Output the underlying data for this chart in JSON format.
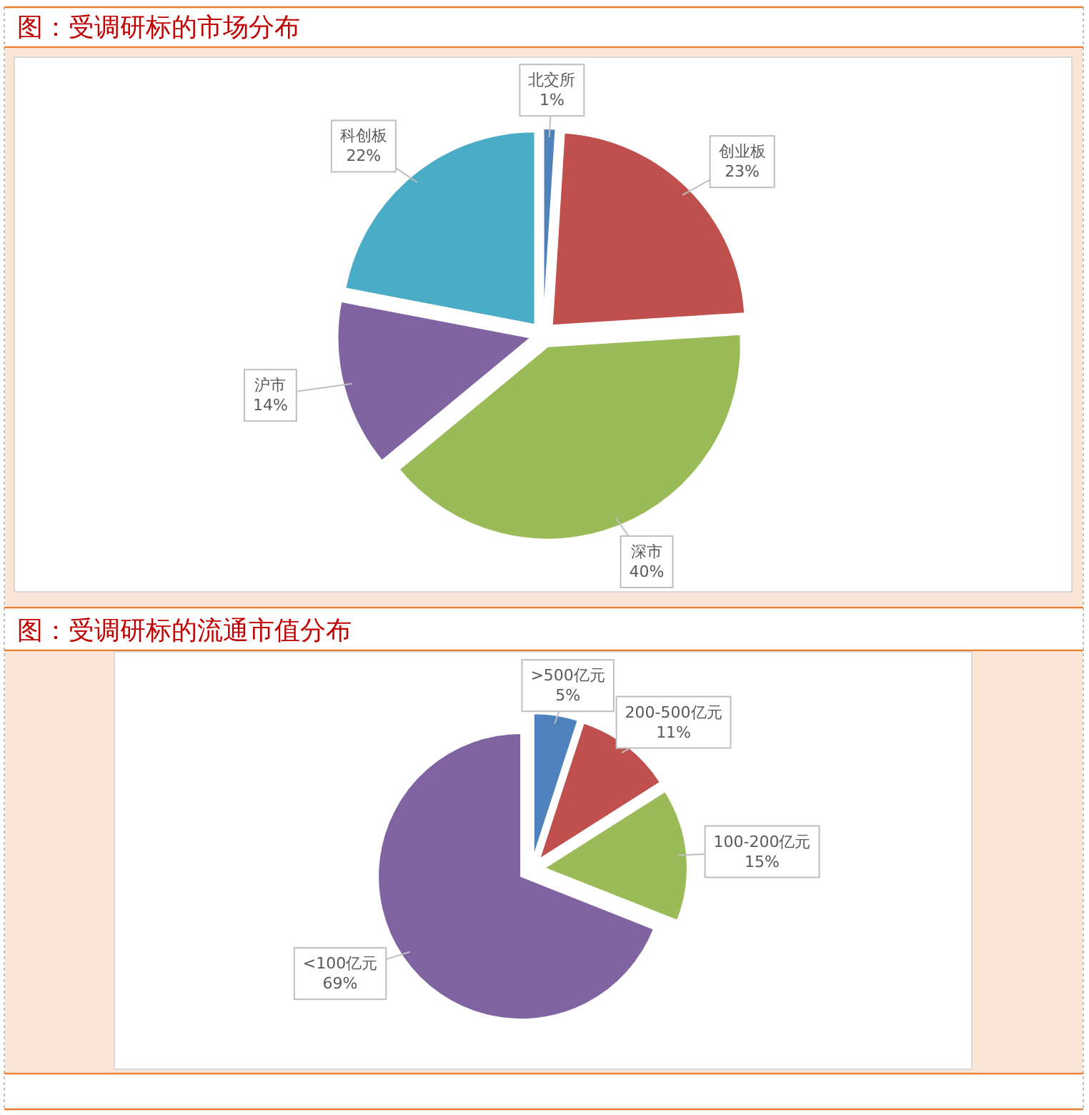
{
  "chart_data": [
    {
      "type": "pie",
      "title": "图：受调研标的市场分布",
      "categories": [
        "北交所",
        "创业板",
        "深市",
        "沪市",
        "科创板"
      ],
      "values": [
        1,
        23,
        40,
        14,
        22
      ],
      "colors": [
        "#4f81bd",
        "#c0504d",
        "#9bbb59",
        "#8064a2",
        "#4bacc6"
      ],
      "value_labels": [
        "1%",
        "23%",
        "40%",
        "14%",
        "22%"
      ]
    },
    {
      "type": "pie",
      "title": "图：受调研标的流通市值分布",
      "categories": [
        ">500亿元",
        "200-500亿元",
        "100-200亿元",
        "<100亿元"
      ],
      "values": [
        5,
        11,
        15,
        69
      ],
      "colors": [
        "#4f81bd",
        "#c0504d",
        "#9bbb59",
        "#8064a2"
      ],
      "value_labels": [
        "5%",
        "11%",
        "15%",
        "69%"
      ]
    }
  ]
}
